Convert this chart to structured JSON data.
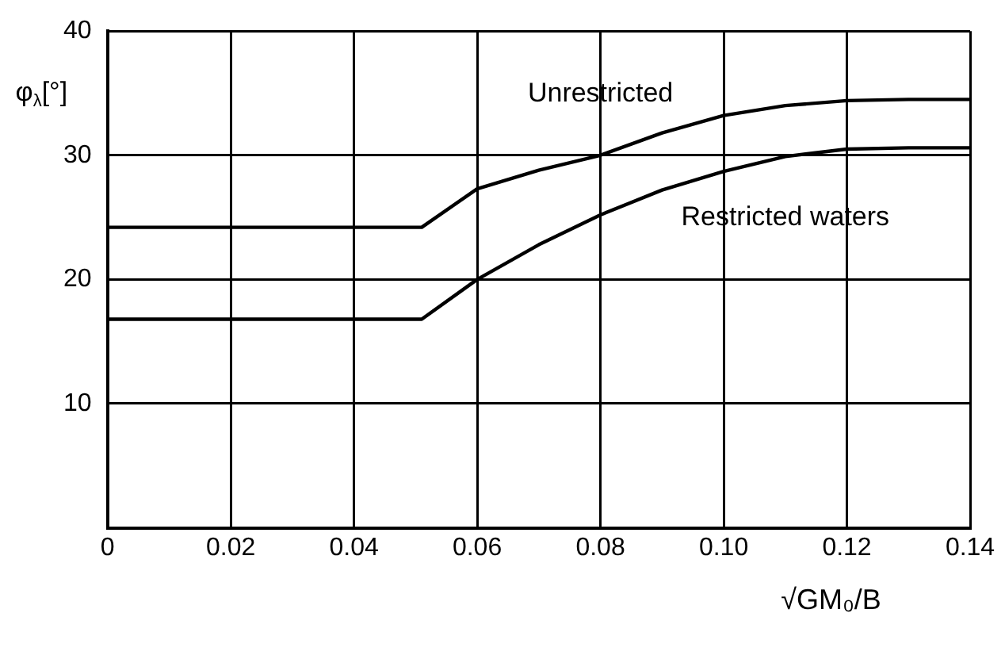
{
  "chart_data": {
    "type": "line",
    "xlabel": "√GM₀/B",
    "ylabel": "φ$_{λ}$[°]",
    "x": [
      0,
      0.051,
      0.06,
      0.07,
      0.08,
      0.09,
      0.1,
      0.11,
      0.12,
      0.13,
      0.14
    ],
    "series": [
      {
        "name": "Unrestricted",
        "color": "#000000",
        "values": [
          24.2,
          24.2,
          27.3,
          28.8,
          30,
          31.8,
          33.2,
          34,
          34.4,
          34.5,
          34.5
        ]
      },
      {
        "name": "Restricted waters",
        "color": "#000000",
        "values": [
          16.8,
          16.8,
          20,
          22.8,
          25.2,
          27.2,
          28.7,
          29.9,
          30.5,
          30.6,
          30.6
        ]
      }
    ],
    "xlim": [
      0,
      0.14
    ],
    "xticks": [
      0,
      {
        "value": 0.02,
        "label": "0.02"
      },
      {
        "value": 0.04,
        "label": "0.04"
      },
      {
        "value": 0.06,
        "label": "0.06"
      },
      {
        "value": 0.08,
        "label": "0.08"
      },
      {
        "value": 0.1,
        "label": "0.10"
      },
      {
        "value": 0.12,
        "label": "0.12"
      },
      {
        "value": 0.14,
        "label": "0.14"
      }
    ],
    "ylim": [
      0,
      40
    ],
    "yticks": [
      {
        "value": 0,
        "label": null
      },
      10,
      20,
      30,
      40
    ],
    "grid": true,
    "legend": false,
    "marker": "none",
    "line_style": "solid"
  }
}
